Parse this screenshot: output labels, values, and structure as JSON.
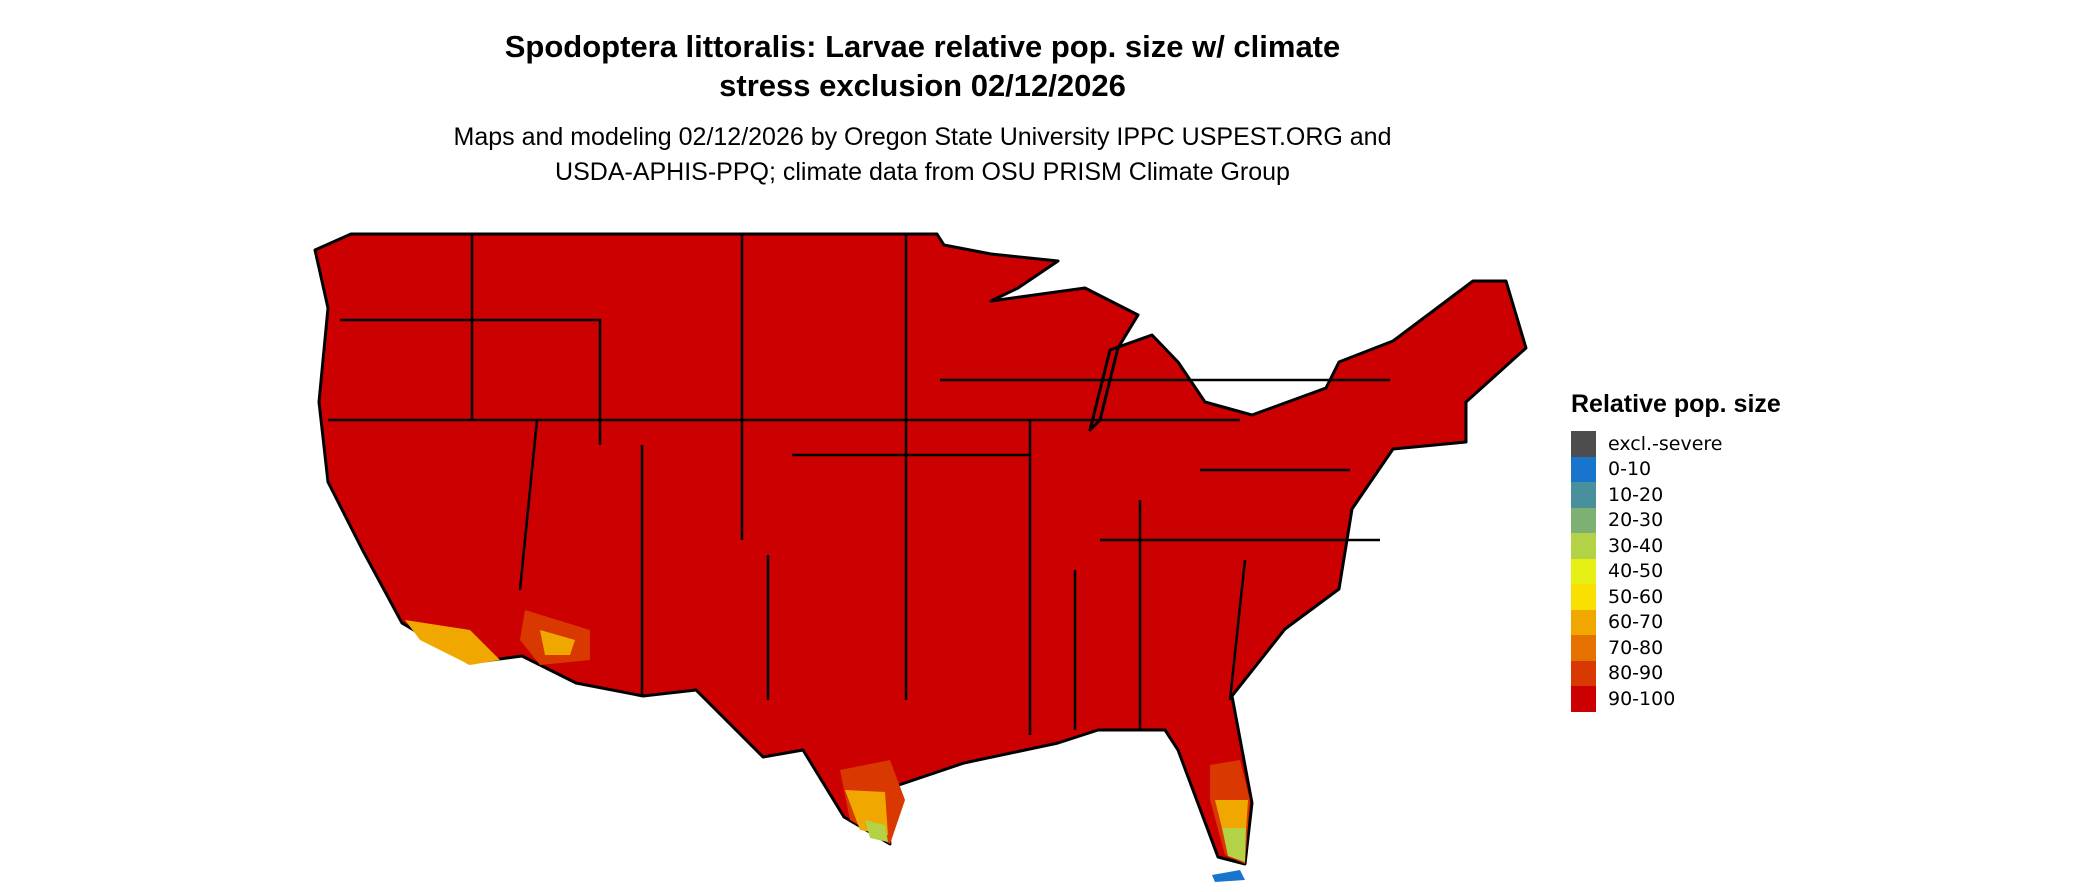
{
  "map": {
    "title_line1": "Spodoptera littoralis: Larvae relative pop. size w/ climate",
    "title_line2": "stress exclusion 02/12/2026",
    "subtitle_line1": "Maps and modeling 02/12/2026 by Oregon State University IPPC USPEST.ORG and",
    "subtitle_line2": "USDA-APHIS-PPQ; climate data from OSU PRISM Climate Group",
    "region": "Contiguous United States",
    "dominant_class": "90-100"
  },
  "legend": {
    "title": "Relative pop. size",
    "items": [
      {
        "label": "excl.-severe",
        "color": "#4d4d4d"
      },
      {
        "label": "0-10",
        "color": "#1874cd"
      },
      {
        "label": "10-20",
        "color": "#4a8f9c"
      },
      {
        "label": "20-30",
        "color": "#7db073"
      },
      {
        "label": "30-40",
        "color": "#b3d245"
      },
      {
        "label": "40-50",
        "color": "#e6f015"
      },
      {
        "label": "50-60",
        "color": "#f9e000"
      },
      {
        "label": "60-70",
        "color": "#f0a800"
      },
      {
        "label": "70-80",
        "color": "#e57200"
      },
      {
        "label": "80-90",
        "color": "#d93800"
      },
      {
        "label": "90-100",
        "color": "#cc0000"
      }
    ]
  }
}
